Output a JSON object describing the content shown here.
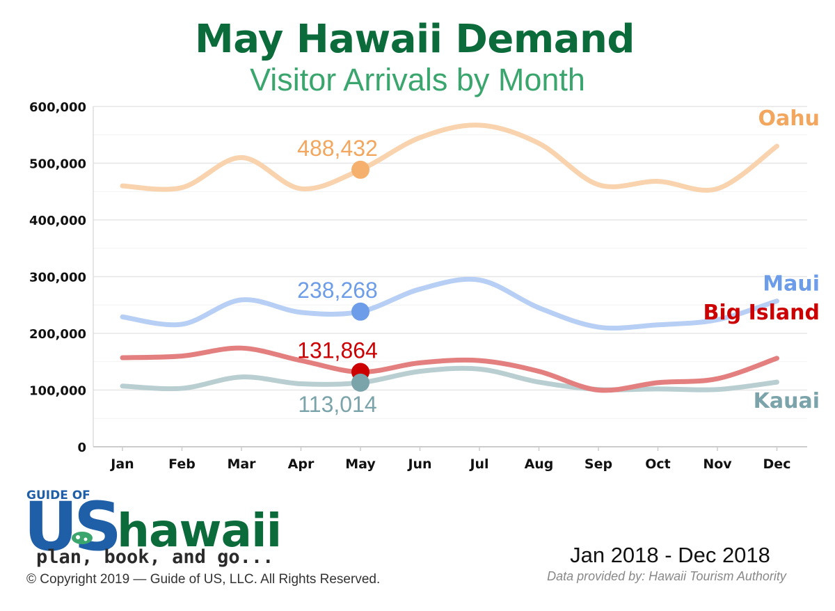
{
  "chart_data": {
    "type": "line",
    "title": "May Hawaii Demand",
    "subtitle": "Visitor Arrivals by Month",
    "categories": [
      "Jan",
      "Feb",
      "Mar",
      "Apr",
      "May",
      "Jun",
      "Jul",
      "Aug",
      "Sep",
      "Oct",
      "Nov",
      "Dec"
    ],
    "ylim": [
      0,
      600000
    ],
    "yticks": [
      0,
      100000,
      200000,
      300000,
      400000,
      500000,
      600000
    ],
    "ytick_labels": [
      "0",
      "100,000",
      "200,000",
      "300,000",
      "400,000",
      "500,000",
      "600,000"
    ],
    "grid": true,
    "highlight_category": "May",
    "series": [
      {
        "name": "Oahu",
        "color": "#f9d3ad",
        "marker_color": "#f5b06e",
        "label_color": "#f2a65e",
        "values": [
          460000,
          457000,
          510000,
          455000,
          488432,
          545000,
          567000,
          535000,
          462000,
          468000,
          455000,
          530000
        ],
        "highlight_label": "488,432",
        "label_position": "above"
      },
      {
        "name": "Maui",
        "color": "#b8cff5",
        "marker_color": "#6d9de8",
        "label_color": "#6d9de8",
        "values": [
          229000,
          216000,
          259000,
          237000,
          238268,
          278000,
          294000,
          245000,
          211000,
          215000,
          224000,
          257000
        ],
        "highlight_label": "238,268",
        "label_position": "above"
      },
      {
        "name": "Big Island",
        "color": "#e37f7f",
        "marker_color": "#cc0000",
        "label_color": "#cc0000",
        "values": [
          157000,
          160000,
          174000,
          152000,
          131864,
          148000,
          152000,
          133000,
          100000,
          113000,
          120000,
          156000
        ],
        "highlight_label": "131,864",
        "label_position": "above"
      },
      {
        "name": "Kauai",
        "color": "#b9ced1",
        "marker_color": "#7aa3aa",
        "label_color": "#7aa3aa",
        "values": [
          107000,
          103000,
          123000,
          111000,
          113014,
          133000,
          137000,
          114000,
          101000,
          102000,
          101000,
          114000
        ],
        "highlight_label": "113,014",
        "label_position": "below"
      }
    ]
  },
  "logo": {
    "line1": "GUIDE OF",
    "us": "US",
    "name": "hawaii",
    "tagline": "plan, book, and go..."
  },
  "footer": {
    "copyright": "© Copyright 2019 — Guide of US, LLC. All Rights Reserved.",
    "date_range": "Jan 2018 - Dec 2018",
    "source": "Data provided by: Hawaii Tourism Authority"
  }
}
